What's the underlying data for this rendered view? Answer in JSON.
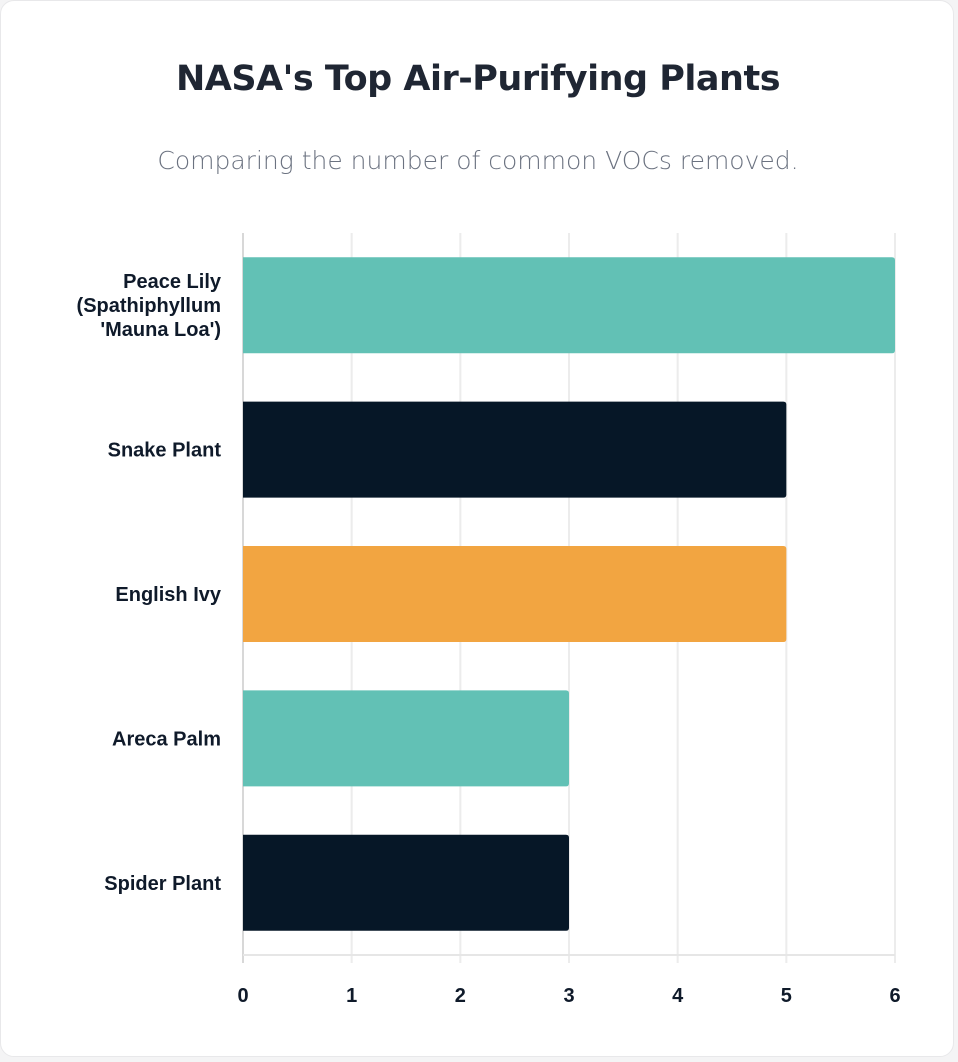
{
  "chart_data": {
    "type": "bar",
    "orientation": "horizontal",
    "title": "NASA's Top Air-Purifying Plants",
    "subtitle": "Comparing the number of common VOCs removed.",
    "categories": [
      [
        "Peace Lily",
        "(Spathiphyllum",
        "'Mauna Loa')"
      ],
      [
        "Snake Plant"
      ],
      [
        "English Ivy"
      ],
      [
        "Areca Palm"
      ],
      [
        "Spider Plant"
      ]
    ],
    "values": [
      6,
      5,
      5,
      3,
      3
    ],
    "colors": [
      "#62c1b5",
      "#061727",
      "#f2a541",
      "#62c1b5",
      "#061727"
    ],
    "xlim": [
      0,
      6
    ],
    "xticks": [
      "0",
      "1",
      "2",
      "3",
      "4",
      "5",
      "6"
    ],
    "grid": true,
    "legend": "none"
  }
}
